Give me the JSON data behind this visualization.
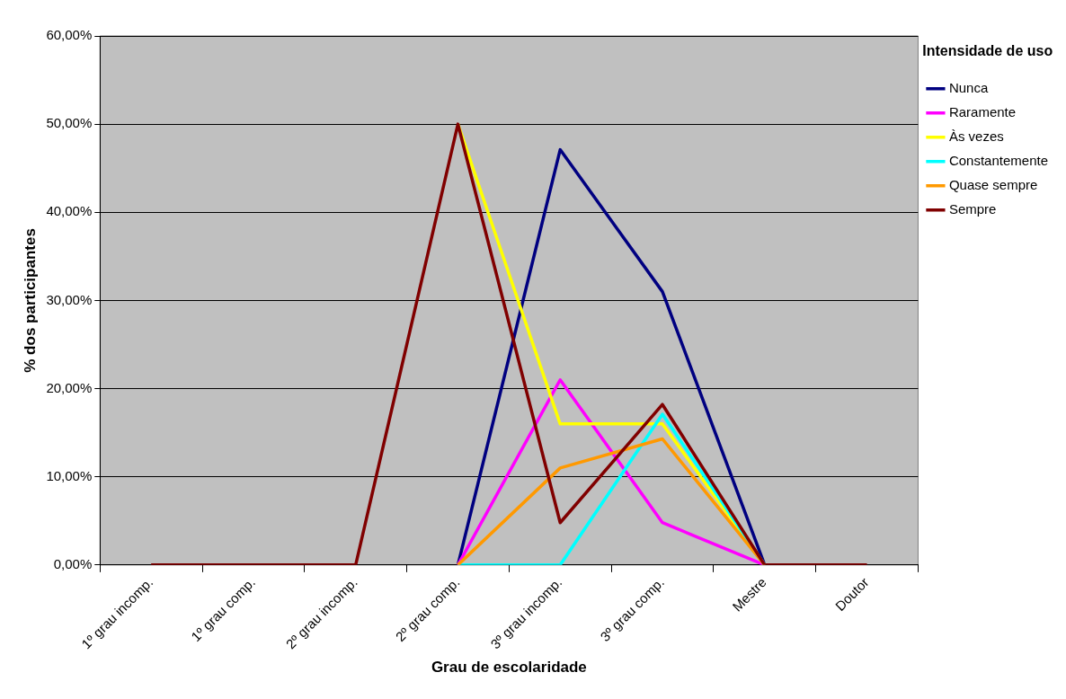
{
  "chart_data": {
    "type": "line",
    "xlabel": "Grau de escolaridade",
    "ylabel": "% dos participantes",
    "legend_title": "Intensidade de uso",
    "categories": [
      "1º grau incomp.",
      "1º grau comp.",
      "2º grau incomp.",
      "2º grau comp.",
      "3º grau incomp.",
      "3º grau comp.",
      "Mestre",
      "Doutor"
    ],
    "series": [
      {
        "name": "Nunca",
        "color": "#000080",
        "values": [
          null,
          null,
          null,
          0,
          47.1,
          31,
          0,
          null
        ]
      },
      {
        "name": "Raramente",
        "color": "#ff00ff",
        "values": [
          null,
          null,
          null,
          0,
          21,
          4.8,
          0,
          null
        ]
      },
      {
        "name": "Às vezes",
        "color": "#ffff00",
        "values": [
          null,
          null,
          null,
          50,
          16,
          16,
          0,
          null
        ]
      },
      {
        "name": "Constantemente",
        "color": "#00ffff",
        "values": [
          null,
          null,
          null,
          0,
          0,
          17.1,
          0,
          null
        ]
      },
      {
        "name": "Quase sempre",
        "color": "#ff9900",
        "values": [
          null,
          null,
          null,
          0,
          11,
          14.3,
          0,
          null
        ]
      },
      {
        "name": "Sempre",
        "color": "#800000",
        "values": [
          0,
          0,
          0,
          50,
          4.8,
          18.2,
          0,
          0
        ]
      }
    ],
    "ylim": [
      0,
      60
    ],
    "yticks": [
      {
        "value": 0,
        "label": "0,00%"
      },
      {
        "value": 10,
        "label": "10,00%"
      },
      {
        "value": 20,
        "label": "20,00%"
      },
      {
        "value": 30,
        "label": "30,00%"
      },
      {
        "value": 40,
        "label": "40,00%"
      },
      {
        "value": 50,
        "label": "50,00%"
      },
      {
        "value": 60,
        "label": "60,00%"
      }
    ],
    "grid": "y",
    "legend": "right",
    "marker": "none",
    "line_style": "solid"
  }
}
